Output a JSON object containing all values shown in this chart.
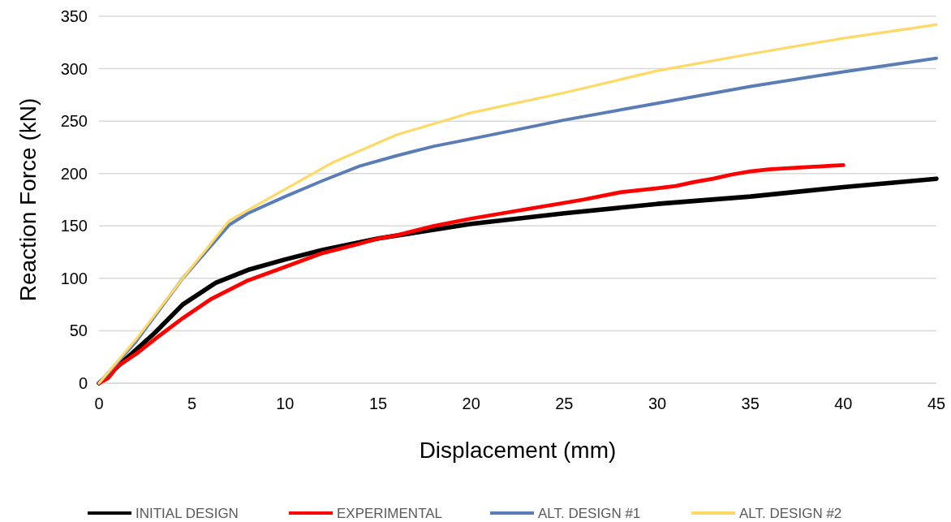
{
  "chart_data": {
    "type": "line",
    "xlabel": "Displacement (mm)",
    "ylabel": "Reaction Force (kN)",
    "xlim": [
      0,
      45
    ],
    "xticks": [
      0,
      5,
      10,
      15,
      20,
      25,
      30,
      35,
      40,
      45
    ],
    "ylim": [
      0,
      350
    ],
    "yticks": [
      0,
      50,
      100,
      150,
      200,
      250,
      300,
      350
    ],
    "grid": "y",
    "legend": "bottom",
    "marker": "none",
    "line_style": "solid",
    "series": [
      {
        "name": "INITIAL DESIGN",
        "color": "#000000",
        "x": [
          0,
          1,
          3,
          4.5,
          6.3,
          8,
          10,
          12,
          15,
          20,
          25,
          30,
          35,
          40,
          45
        ],
        "values": [
          0,
          16,
          48,
          75,
          96,
          108,
          118,
          127,
          138,
          152,
          162,
          171,
          178,
          187,
          195
        ]
      },
      {
        "name": "EXPERIMENTAL",
        "color": "#ff0000",
        "x": [
          0,
          0.5,
          1,
          2,
          3,
          4.5,
          6,
          8,
          10,
          12,
          14,
          15,
          16,
          18,
          20,
          22,
          24,
          26,
          28,
          30,
          31,
          32,
          33,
          34,
          35,
          36,
          38,
          40
        ],
        "values": [
          0,
          5,
          16,
          28,
          42,
          62,
          80,
          98,
          111,
          124,
          133,
          138,
          141,
          150,
          157,
          163,
          169,
          175,
          182,
          186,
          188,
          192,
          195,
          199,
          202,
          204,
          206,
          208
        ]
      },
      {
        "name": "ALT. DESIGN #1",
        "color": "#5b7db5",
        "x": [
          0,
          2,
          4.5,
          7,
          8,
          10,
          12,
          14,
          16,
          18,
          20,
          25,
          30,
          35,
          40,
          45
        ],
        "values": [
          0,
          40,
          100,
          151,
          162,
          178,
          193,
          207,
          217,
          226,
          233,
          251,
          267,
          283,
          297,
          310
        ]
      },
      {
        "name": "ALT. DESIGN #2",
        "color": "#ffd966",
        "x": [
          0,
          2,
          4.5,
          7,
          10,
          12.5,
          16,
          20,
          25,
          30,
          35,
          40,
          45
        ],
        "values": [
          0,
          42,
          100,
          155,
          185,
          210,
          237,
          258,
          277,
          298,
          314,
          329,
          342
        ]
      }
    ]
  }
}
